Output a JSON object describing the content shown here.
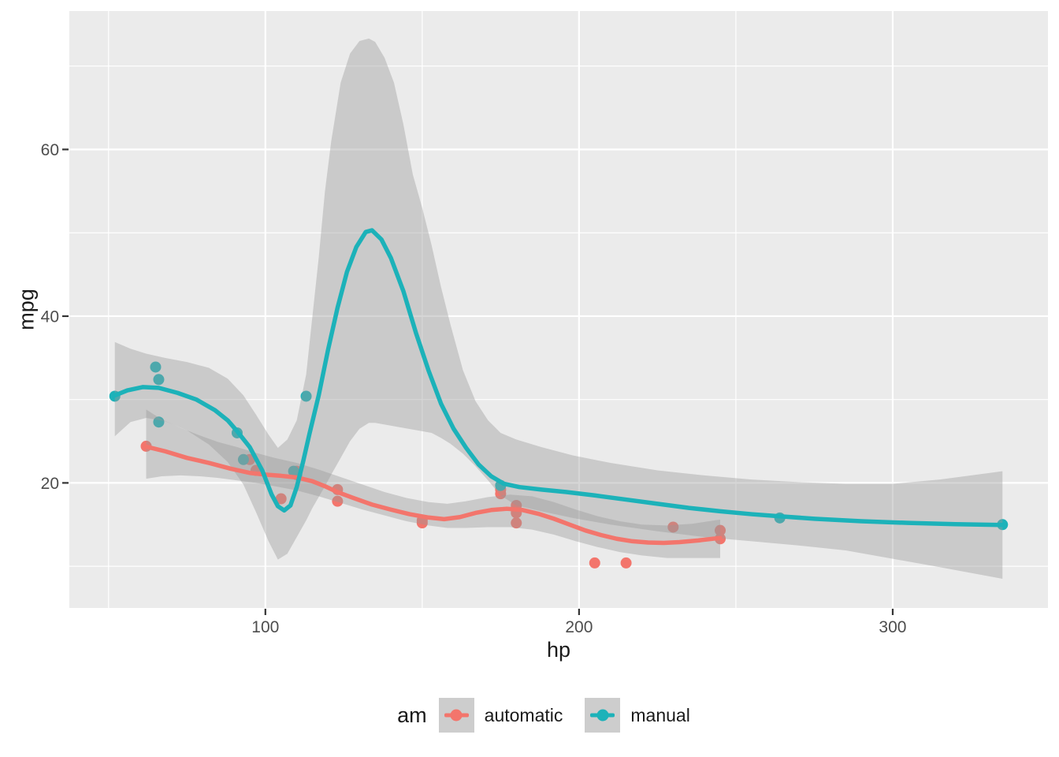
{
  "figure": {
    "background": "#FFFFFF"
  },
  "chart_data": {
    "type": "scatter",
    "title": "",
    "xlabel": "hp",
    "ylabel": "mpg",
    "x_domain": [
      37.5,
      349.5
    ],
    "y_domain": [
      5.0,
      76.6
    ],
    "x_ticks": [
      100,
      200,
      300
    ],
    "x_minor_ticks": [
      50,
      150,
      250
    ],
    "y_ticks": [
      20,
      40,
      60
    ],
    "y_minor_ticks": [
      10,
      30,
      50,
      70
    ],
    "panel_background": "#EBEBEB",
    "grid_color": "#FFFFFF",
    "tick_color": "#333333",
    "tick_label_color": "#4D4D4D",
    "axis_title_color": "#1A1A1A",
    "ribbon_fill": "#999999",
    "ribbon_opacity": 0.4,
    "legend": {
      "title": "am",
      "position": "bottom",
      "key_background": "#CDCDCD"
    },
    "series": [
      {
        "name": "automatic",
        "color": "#F3756C",
        "points": [
          [
            110,
            21.4
          ],
          [
            175,
            18.7
          ],
          [
            105,
            18.1
          ],
          [
            245,
            14.3
          ],
          [
            62,
            24.4
          ],
          [
            95,
            22.8
          ],
          [
            123,
            19.2
          ],
          [
            123,
            17.8
          ],
          [
            180,
            16.4
          ],
          [
            180,
            17.3
          ],
          [
            180,
            15.2
          ],
          [
            205,
            10.4
          ],
          [
            215,
            10.4
          ],
          [
            230,
            14.7
          ],
          [
            97,
            21.5
          ],
          [
            150,
            15.5
          ],
          [
            150,
            15.2
          ],
          [
            245,
            13.3
          ],
          [
            175,
            19.2
          ]
        ],
        "smooth_line": [
          [
            62,
            24.35
          ],
          [
            68,
            23.8
          ],
          [
            75,
            23.0
          ],
          [
            82,
            22.4
          ],
          [
            89,
            21.7
          ],
          [
            95,
            21.2
          ],
          [
            100,
            21.0
          ],
          [
            105,
            20.85
          ],
          [
            110,
            20.65
          ],
          [
            115,
            20.2
          ],
          [
            119,
            19.6
          ],
          [
            123,
            18.9
          ],
          [
            128,
            18.2
          ],
          [
            134,
            17.4
          ],
          [
            140,
            16.8
          ],
          [
            146,
            16.25
          ],
          [
            152,
            15.85
          ],
          [
            157,
            15.65
          ],
          [
            162,
            15.9
          ],
          [
            167,
            16.4
          ],
          [
            172,
            16.75
          ],
          [
            177,
            16.9
          ],
          [
            182,
            16.75
          ],
          [
            187,
            16.3
          ],
          [
            192,
            15.7
          ],
          [
            197,
            15.0
          ],
          [
            202,
            14.3
          ],
          [
            207,
            13.75
          ],
          [
            212,
            13.3
          ],
          [
            217,
            13.0
          ],
          [
            222,
            12.85
          ],
          [
            227,
            12.8
          ],
          [
            232,
            12.9
          ],
          [
            238,
            13.1
          ],
          [
            245,
            13.4
          ]
        ],
        "ribbon": [
          [
            62,
            20.5,
            28.8
          ],
          [
            67,
            20.8,
            27.6
          ],
          [
            73,
            20.9,
            26.6
          ],
          [
            79,
            20.8,
            25.7
          ],
          [
            85,
            20.6,
            24.9
          ],
          [
            91,
            20.3,
            24.3
          ],
          [
            97,
            20.0,
            23.6
          ],
          [
            103,
            19.6,
            23.0
          ],
          [
            110,
            19.1,
            22.4
          ],
          [
            117,
            18.4,
            21.6
          ],
          [
            124,
            17.6,
            20.7
          ],
          [
            131,
            16.8,
            19.8
          ],
          [
            138,
            16.1,
            18.9
          ],
          [
            145,
            15.4,
            18.2
          ],
          [
            152,
            14.9,
            17.7
          ],
          [
            158,
            14.6,
            17.5
          ],
          [
            164,
            14.6,
            17.8
          ],
          [
            171,
            14.7,
            18.3
          ],
          [
            178,
            14.7,
            18.6
          ],
          [
            185,
            14.4,
            18.4
          ],
          [
            192,
            13.8,
            17.7
          ],
          [
            199,
            13.0,
            16.8
          ],
          [
            206,
            12.3,
            16.0
          ],
          [
            213,
            11.7,
            15.4
          ],
          [
            220,
            11.3,
            15.0
          ],
          [
            228,
            11.0,
            14.9
          ],
          [
            236,
            11.0,
            15.1
          ],
          [
            245,
            11.0,
            15.6
          ]
        ]
      },
      {
        "name": "manual",
        "color": "#1CB2B9",
        "points": [
          [
            110,
            21.0
          ],
          [
            110,
            21.0
          ],
          [
            93,
            22.8
          ],
          [
            66,
            32.4
          ],
          [
            52,
            30.4
          ],
          [
            65,
            33.9
          ],
          [
            113,
            30.4
          ],
          [
            66,
            27.3
          ],
          [
            91,
            26.0
          ],
          [
            264,
            15.8
          ],
          [
            175,
            19.7
          ],
          [
            335,
            15.0
          ],
          [
            109,
            21.4
          ]
        ],
        "smooth_line": [
          [
            52,
            30.5
          ],
          [
            56,
            31.1
          ],
          [
            61,
            31.5
          ],
          [
            66,
            31.4
          ],
          [
            72,
            30.8
          ],
          [
            78,
            30.0
          ],
          [
            84,
            28.7
          ],
          [
            88,
            27.5
          ],
          [
            91,
            26.2
          ],
          [
            95,
            24.3
          ],
          [
            99,
            21.5
          ],
          [
            102,
            18.6
          ],
          [
            104,
            17.2
          ],
          [
            106,
            16.7
          ],
          [
            108,
            17.3
          ],
          [
            110,
            19.5
          ],
          [
            112,
            22.5
          ],
          [
            114,
            25.8
          ],
          [
            117,
            30.5
          ],
          [
            120,
            36.0
          ],
          [
            123,
            41.0
          ],
          [
            126,
            45.3
          ],
          [
            129,
            48.3
          ],
          [
            132,
            50.1
          ],
          [
            134,
            50.3
          ],
          [
            137,
            49.2
          ],
          [
            140,
            47.0
          ],
          [
            144,
            43.0
          ],
          [
            148,
            38.0
          ],
          [
            152,
            33.5
          ],
          [
            156,
            29.5
          ],
          [
            160,
            26.5
          ],
          [
            164,
            24.2
          ],
          [
            168,
            22.2
          ],
          [
            172,
            20.8
          ],
          [
            176,
            19.9
          ],
          [
            181,
            19.5
          ],
          [
            188,
            19.2
          ],
          [
            196,
            18.9
          ],
          [
            205,
            18.5
          ],
          [
            215,
            18.0
          ],
          [
            225,
            17.5
          ],
          [
            235,
            17.0
          ],
          [
            245,
            16.6
          ],
          [
            255,
            16.25
          ],
          [
            264,
            16.0
          ],
          [
            275,
            15.7
          ],
          [
            290,
            15.4
          ],
          [
            305,
            15.2
          ],
          [
            320,
            15.05
          ],
          [
            335,
            14.95
          ]
        ],
        "ribbon": [
          [
            52,
            25.6,
            36.9
          ],
          [
            57,
            27.3,
            36.1
          ],
          [
            62,
            27.8,
            35.5
          ],
          [
            68,
            27.4,
            35.0
          ],
          [
            75,
            26.3,
            34.5
          ],
          [
            82,
            24.6,
            33.8
          ],
          [
            88,
            22.5,
            32.5
          ],
          [
            93,
            19.8,
            30.5
          ],
          [
            97,
            16.5,
            28.2
          ],
          [
            101,
            13.0,
            25.8
          ],
          [
            104,
            10.8,
            24.2
          ],
          [
            107,
            11.5,
            25.2
          ],
          [
            110,
            13.5,
            27.5
          ],
          [
            113,
            15.5,
            33.0
          ],
          [
            115,
            17.0,
            40.0
          ],
          [
            117,
            18.3,
            47.0
          ],
          [
            119,
            19.6,
            55.0
          ],
          [
            121,
            21.0,
            61.0
          ],
          [
            124,
            23.0,
            68.0
          ],
          [
            127,
            25.0,
            71.5
          ],
          [
            130,
            26.5,
            73.0
          ],
          [
            133,
            27.2,
            73.3
          ],
          [
            135,
            27.2,
            72.9
          ],
          [
            138,
            27.0,
            71.0
          ],
          [
            141,
            26.8,
            68.0
          ],
          [
            144,
            26.6,
            63.0
          ],
          [
            147,
            26.4,
            57.0
          ],
          [
            150,
            26.2,
            53.0
          ],
          [
            153,
            26.0,
            48.5
          ],
          [
            156,
            25.4,
            43.5
          ],
          [
            159,
            24.7,
            39.0
          ],
          [
            163,
            23.5,
            33.5
          ],
          [
            167,
            22.0,
            29.8
          ],
          [
            171,
            20.3,
            27.5
          ],
          [
            175,
            18.5,
            26.0
          ],
          [
            180,
            17.3,
            25.2
          ],
          [
            188,
            16.6,
            24.3
          ],
          [
            198,
            15.8,
            23.3
          ],
          [
            210,
            15.0,
            22.4
          ],
          [
            225,
            14.2,
            21.5
          ],
          [
            240,
            13.5,
            20.9
          ],
          [
            255,
            13.0,
            20.4
          ],
          [
            270,
            12.5,
            20.1
          ],
          [
            285,
            11.9,
            19.9
          ],
          [
            300,
            10.9,
            19.9
          ],
          [
            315,
            9.9,
            20.4
          ],
          [
            325,
            9.2,
            20.9
          ],
          [
            335,
            8.5,
            21.4
          ]
        ]
      }
    ]
  }
}
